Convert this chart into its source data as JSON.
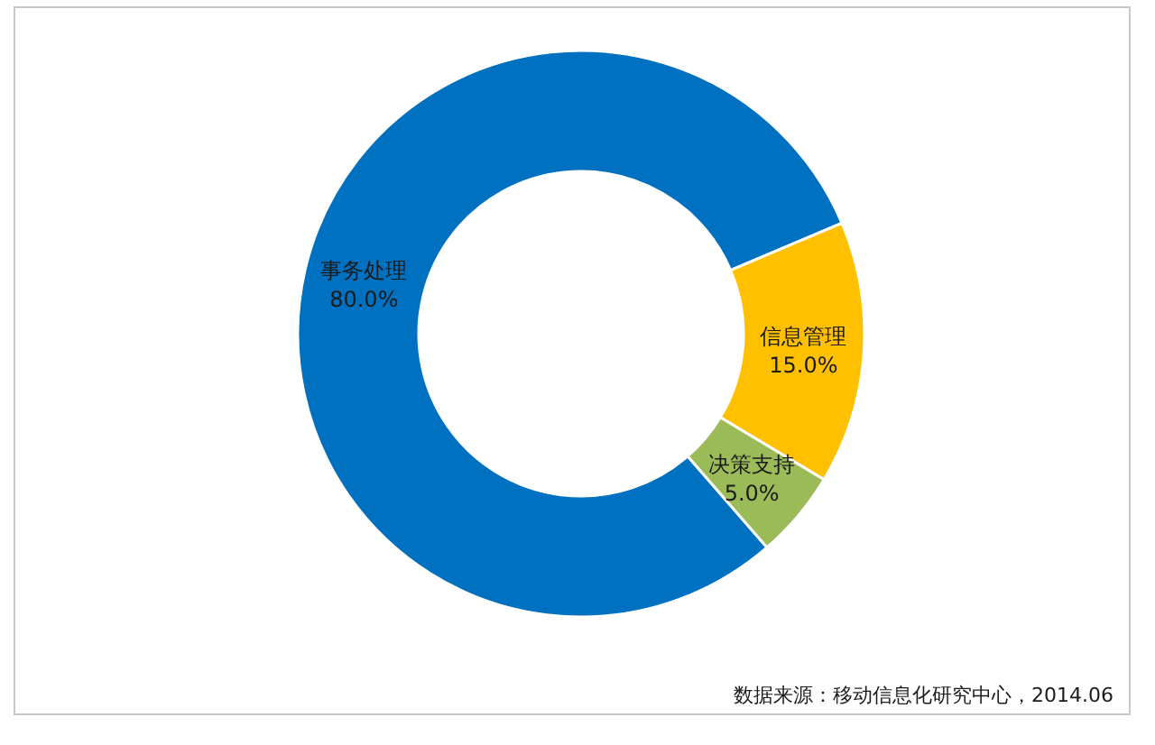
{
  "chart_data": {
    "type": "donut",
    "categories": [
      "事务处理",
      "信息管理",
      "决策支持"
    ],
    "values": [
      80,
      15,
      5
    ],
    "colors": [
      "#0070c0",
      "#ffc000",
      "#9bbb59"
    ],
    "value_labels": [
      "80.0%",
      "15.0%",
      "5.0%"
    ],
    "annotations": [
      "数据来源：移动信息化研究中心，2014.06"
    ]
  }
}
